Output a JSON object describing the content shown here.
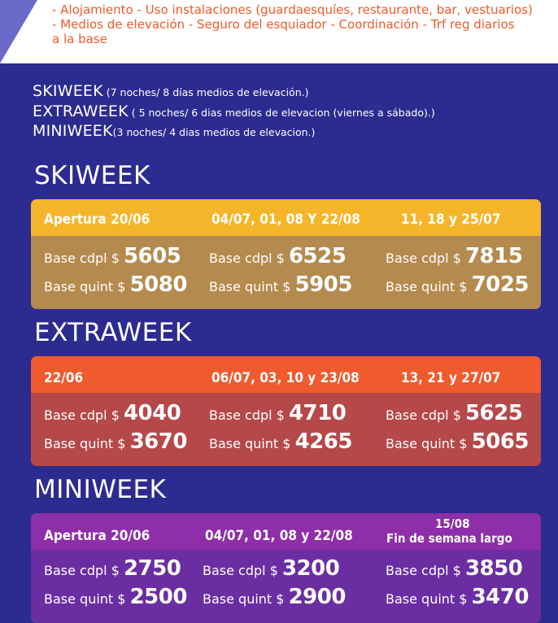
{
  "includes": [
    "- Alojamiento - Uso instalaciones (guardaesquíes, restaurante, bar, vestuarios)",
    "- Medios de elevación - Seguro del esquiador - Coordinación - Trf reg diarios",
    "a la base"
  ],
  "packages": [
    {
      "name": "SKIWEEK",
      "desc": " (7 noches/ 8 días medios de elevación.)"
    },
    {
      "name": "EXTRAWEEK",
      "desc": " ( 5 noches/ 6 dias medios de elevacion (viernes a sábado).)"
    },
    {
      "name": "MINIWEEK",
      "desc": "(3 noches/ 4 dias medios de elevacion.)"
    }
  ],
  "sections": [
    {
      "title": "SKIWEEK",
      "head_color": "#f5b52b",
      "body_color": "#b58a4e",
      "columns": [
        {
          "head": "Apertura 20/06",
          "head2": "",
          "cdpl_label": "Base cdpl $ ",
          "cdpl": "5605",
          "quint_label": "Base quint $ ",
          "quint": "5080"
        },
        {
          "head": "04/07, 01, 08 Y 22/08",
          "head2": "",
          "cdpl_label": "Base cdpl $ ",
          "cdpl": "6525",
          "quint_label": "Base quint $ ",
          "quint": "5905"
        },
        {
          "head": "11, 18 y 25/07",
          "head2": "",
          "cdpl_label": "Base cdpl $ ",
          "cdpl": "7815",
          "quint_label": "Base quint $ ",
          "quint": "7025"
        }
      ]
    },
    {
      "title": "EXTRAWEEK",
      "head_color": "#f05a2c",
      "body_color": "#b54849",
      "columns": [
        {
          "head": "22/06",
          "head2": "",
          "cdpl_label": "Base cdpl $ ",
          "cdpl": "4040",
          "quint_label": "Base quint $ ",
          "quint": "3670"
        },
        {
          "head": "06/07, 03, 10 y 23/08",
          "head2": "",
          "cdpl_label": "Base cdpl $ ",
          "cdpl": "4710",
          "quint_label": "Base quint $ ",
          "quint": "4265"
        },
        {
          "head": "13, 21 y 27/07",
          "head2": "",
          "cdpl_label": "Base cdpl $ ",
          "cdpl": "5625",
          "quint_label": "Base quint $ ",
          "quint": "5065"
        }
      ]
    },
    {
      "title": "MINIWEEK",
      "head_color": "#8e2ea8",
      "body_color": "#6a2ea2",
      "columns": [
        {
          "head": "Apertura 20/06",
          "head2": "",
          "cdpl_label": "Base cdpl $ ",
          "cdpl": "2750",
          "quint_label": "Base quint $ ",
          "quint": "2500"
        },
        {
          "head": "04/07, 01, 08 y 22/08",
          "head2": "",
          "cdpl_label": "Base cdpl $ ",
          "cdpl": "3200",
          "quint_label": "Base quint $ ",
          "quint": "2900"
        },
        {
          "head": "15/08",
          "head2": "Fin de semana largo",
          "cdpl_label": "Base cdpl $ ",
          "cdpl": "3850",
          "quint_label": "Base quint $ ",
          "quint": "3470"
        }
      ]
    }
  ]
}
